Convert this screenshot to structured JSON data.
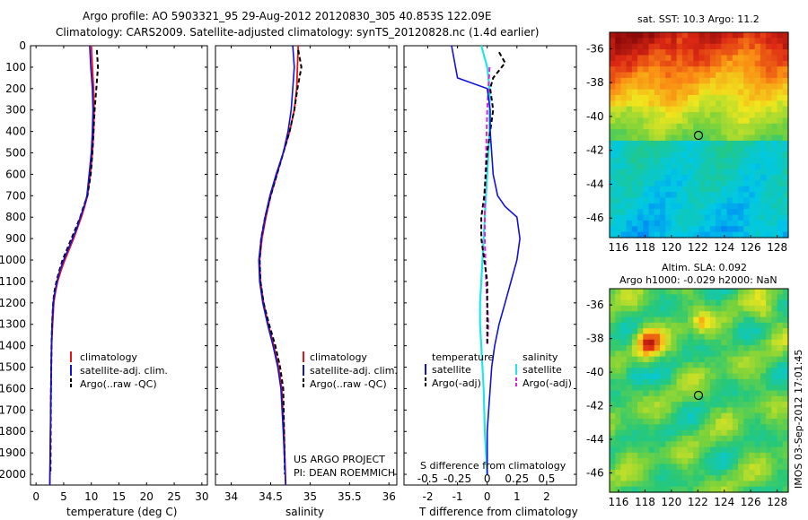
{
  "header": {
    "line1": "Argo profile: AO 5903321_95 29-Aug-2012 20120830_305 40.853S 122.09E",
    "line2": "Climatology: CARS2009. Satellite-adjusted climatology: synTS_20120828.nc (1.4d earlier)"
  },
  "colors": {
    "climatology": "#ee1111",
    "satellite": "#1111dd",
    "argo": "#000000",
    "sat_salinity": "#22e6e6",
    "argo_salinity": "#dd22dd"
  },
  "depth_ticks": [
    "0",
    "100",
    "200",
    "300",
    "400",
    "500",
    "600",
    "700",
    "800",
    "900",
    "1000",
    "1100",
    "1200",
    "1300",
    "1400",
    "1500",
    "1600",
    "1700",
    "1800",
    "1900",
    "2000"
  ],
  "panels": {
    "temperature": {
      "xlabel": "temperature (deg C)",
      "ticks": [
        "0",
        "5",
        "10",
        "15",
        "20",
        "25",
        "30"
      ],
      "legend": [
        "climatology",
        "satellite-adj. clim.",
        "Argo(..raw -QC)"
      ]
    },
    "salinity": {
      "xlabel": "salinity",
      "ticks": [
        "34",
        "34.5",
        "35",
        "35.5",
        "36"
      ],
      "legend": [
        "climatology",
        "satellite-adj. clim.",
        "Argo(..raw -QC)"
      ],
      "credit1": "US ARGO PROJECT",
      "credit2": "PI: DEAN ROEMMICH"
    },
    "difference": {
      "xlabel": "T difference from climatology",
      "ticks": [
        "-2",
        "-1",
        "0",
        "1",
        "2"
      ],
      "top_label": "S difference from climatology",
      "top_ticks": [
        "-0.5",
        "-0.25",
        "0",
        "0.25",
        "0.5"
      ],
      "legend_temp_title": "temperature",
      "legend_sal_title": "salinity",
      "legend_temp": [
        "satellite",
        "Argo(-adj)"
      ],
      "legend_sal": [
        "satellite",
        "Argo(-adj)"
      ]
    }
  },
  "maps": {
    "sst": {
      "title": "sat. SST: 10.3 Argo: 11.2",
      "yticks": [
        "-36",
        "-38",
        "-40",
        "-42",
        "-44",
        "-46"
      ],
      "xticks": [
        "116",
        "118",
        "120",
        "122",
        "124",
        "126",
        "128"
      ]
    },
    "sla": {
      "title1": "Altim. SLA: 0.092",
      "title2": "Argo h1000: -0.029 h2000: NaN",
      "yticks": [
        "-36",
        "-38",
        "-40",
        "-42",
        "-44",
        "-46"
      ],
      "xticks": [
        "116",
        "118",
        "120",
        "122",
        "124",
        "126",
        "128"
      ],
      "side_label": "IMOS 03-Sep-2012 17:01:45"
    }
  },
  "chart_data": [
    {
      "type": "line",
      "ylabel": "",
      "xlabel": "temperature (deg C)",
      "xlim": [
        -1,
        31
      ],
      "ylim": [
        2050,
        0
      ],
      "y_reversed": true,
      "series": [
        {
          "name": "climatology",
          "x": [
            10.0,
            10.2,
            10.4,
            10.5,
            10.4,
            10.2,
            9.8,
            9.3,
            8.8,
            8.2,
            7.5,
            6.8,
            6.0,
            5.2,
            4.5,
            3.9,
            3.5,
            3.2,
            3.0,
            2.8,
            2.7,
            2.6,
            2.5
          ],
          "y": [
            0,
            100,
            200,
            300,
            400,
            500,
            600,
            700,
            750,
            800,
            850,
            900,
            950,
            1000,
            1050,
            1100,
            1150,
            1200,
            1300,
            1400,
            1600,
            1800,
            2050
          ]
        },
        {
          "name": "satellite-adj. clim.",
          "x": [
            9.7,
            9.9,
            10.2,
            10.3,
            10.2,
            10.0,
            9.6,
            9.2,
            8.7,
            8.0,
            7.4,
            6.6,
            5.8,
            5.0,
            4.3,
            3.8,
            3.4,
            3.1,
            2.9,
            2.8,
            2.7,
            2.6,
            2.5
          ],
          "y": [
            0,
            100,
            200,
            300,
            400,
            500,
            600,
            700,
            750,
            800,
            850,
            900,
            950,
            1000,
            1050,
            1100,
            1150,
            1200,
            1300,
            1400,
            1600,
            1800,
            2050
          ]
        },
        {
          "name": "Argo(..raw -QC)",
          "x": [
            11.0,
            11.2,
            10.9,
            10.6,
            10.4,
            10.2,
            9.9,
            9.3,
            8.6,
            8.0,
            7.2,
            6.4,
            5.6,
            4.8,
            4.2,
            3.7,
            3.3,
            3.1,
            2.9,
            2.8,
            2.7,
            2.6
          ],
          "y": [
            20,
            100,
            200,
            300,
            400,
            500,
            600,
            700,
            750,
            800,
            850,
            900,
            950,
            1000,
            1050,
            1100,
            1150,
            1200,
            1300,
            1400,
            1600,
            2000
          ]
        }
      ]
    },
    {
      "type": "line",
      "xlabel": "salinity",
      "xlim": [
        33.8,
        36.1
      ],
      "ylim": [
        2050,
        0
      ],
      "y_reversed": true,
      "series": [
        {
          "name": "climatology",
          "x": [
            34.85,
            34.84,
            34.83,
            34.8,
            34.74,
            34.66,
            34.58,
            34.5,
            34.44,
            34.39,
            34.36,
            34.37,
            34.41,
            34.47,
            34.54,
            34.6,
            34.64,
            34.67,
            34.69
          ],
          "y": [
            0,
            100,
            200,
            300,
            400,
            500,
            600,
            700,
            800,
            900,
            1000,
            1100,
            1200,
            1300,
            1400,
            1500,
            1600,
            1800,
            2050
          ]
        },
        {
          "name": "satellite-adj. clim.",
          "x": [
            34.78,
            34.8,
            34.78,
            34.76,
            34.72,
            34.66,
            34.57,
            34.49,
            34.43,
            34.38,
            34.35,
            34.36,
            34.4,
            34.46,
            34.53,
            34.59,
            34.63,
            34.66,
            34.69
          ],
          "y": [
            0,
            100,
            200,
            300,
            400,
            500,
            600,
            700,
            800,
            900,
            1000,
            1100,
            1200,
            1300,
            1400,
            1500,
            1600,
            1800,
            2050
          ]
        },
        {
          "name": "Argo(..raw -QC)",
          "x": [
            34.85,
            34.89,
            34.84,
            34.8,
            34.74,
            34.66,
            34.58,
            34.5,
            34.43,
            34.38,
            34.36,
            34.37,
            34.41,
            34.48,
            34.56,
            34.62,
            34.66,
            34.68
          ],
          "y": [
            20,
            100,
            200,
            300,
            400,
            500,
            600,
            700,
            800,
            900,
            1000,
            1100,
            1200,
            1300,
            1400,
            1500,
            1600,
            2000
          ]
        }
      ]
    },
    {
      "type": "line",
      "xlabel": "T difference from climatology",
      "xlim": [
        -2.8,
        3.0
      ],
      "top_label": "S difference from climatology",
      "top_xlim": [
        -0.7,
        0.75
      ],
      "ylim": [
        2050,
        0
      ],
      "y_reversed": true,
      "series": [
        {
          "name": "temperature satellite",
          "axis": "T",
          "x": [
            -1.2,
            -1.0,
            0.0,
            0.1,
            0.1,
            0.15,
            0.2,
            0.35,
            0.6,
            1.0,
            1.1,
            1.0,
            0.8,
            0.6,
            0.4,
            0.25,
            0.15,
            0.1,
            0.05,
            0.0,
            0.0
          ],
          "y": [
            0,
            150,
            200,
            300,
            400,
            500,
            600,
            700,
            750,
            800,
            900,
            1000,
            1100,
            1200,
            1300,
            1400,
            1500,
            1600,
            1700,
            1800,
            2000
          ]
        },
        {
          "name": "temperature Argo(-adj)",
          "axis": "T",
          "x": [
            0.4,
            0.6,
            0.2,
            0.1,
            0.2,
            0.0,
            -0.1,
            -0.2,
            -0.2,
            -0.1,
            0.0,
            0.0,
            0.0
          ],
          "y": [
            30,
            80,
            150,
            200,
            300,
            500,
            700,
            800,
            900,
            1000,
            1100,
            1200,
            1400
          ]
        },
        {
          "name": "salinity satellite",
          "axis": "S",
          "x": [
            -0.05,
            0.0,
            0.02,
            0.02,
            0.0,
            -0.02,
            -0.03,
            -0.04,
            -0.05,
            -0.06,
            -0.06,
            -0.05,
            -0.04,
            -0.03,
            -0.02,
            0.0
          ],
          "y": [
            0,
            100,
            200,
            400,
            600,
            800,
            900,
            1000,
            1100,
            1200,
            1300,
            1400,
            1500,
            1600,
            1800,
            2000
          ]
        },
        {
          "name": "salinity Argo(-adj)",
          "axis": "S",
          "x": [
            0.02,
            0.0,
            -0.01,
            -0.02,
            -0.02,
            -0.01,
            0.0,
            0.01,
            0.0
          ],
          "y": [
            100,
            300,
            500,
            700,
            900,
            1100,
            1200,
            1300,
            1400
          ]
        }
      ]
    },
    {
      "type": "heatmap",
      "title": "sat. SST: 10.3 Argo: 11.2",
      "xlim": [
        115,
        129
      ],
      "ylim": [
        -47,
        -35
      ]
    },
    {
      "type": "heatmap",
      "title": "Altim. SLA: 0.092",
      "subtitle": "Argo h1000: -0.029 h2000: NaN",
      "xlim": [
        115,
        129
      ],
      "ylim": [
        -47,
        -35
      ]
    }
  ]
}
